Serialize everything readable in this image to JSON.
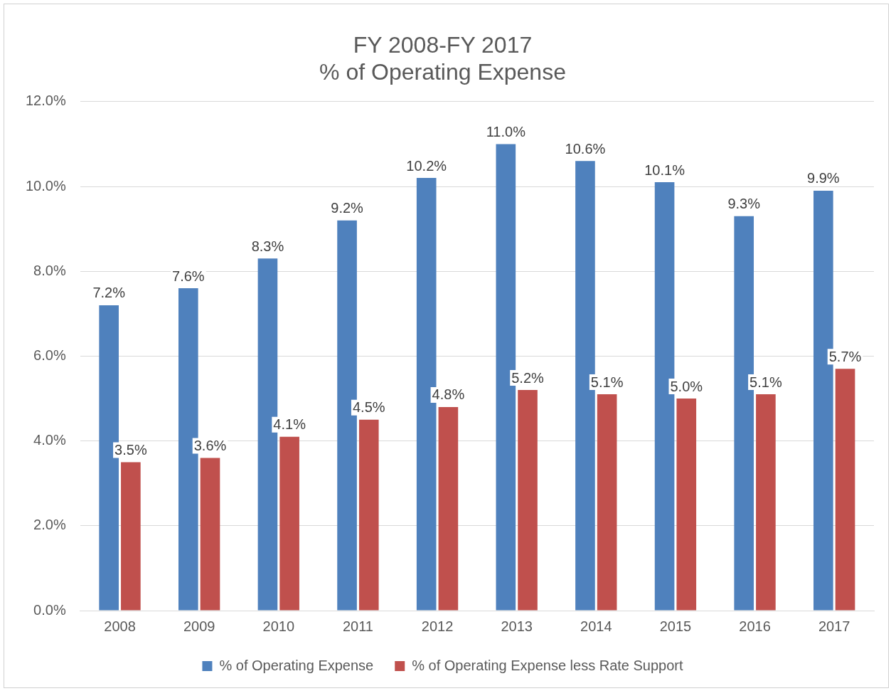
{
  "chart_data": {
    "type": "bar",
    "title": [
      "FY 2008-FY 2017",
      "% of Operating Expense"
    ],
    "categories": [
      "2008",
      "2009",
      "2010",
      "2011",
      "2012",
      "2013",
      "2014",
      "2015",
      "2016",
      "2017"
    ],
    "series": [
      {
        "name": "% of Operating Expense",
        "color": "#4f81bd",
        "values": [
          7.2,
          7.6,
          8.3,
          9.2,
          10.2,
          11.0,
          10.6,
          10.1,
          9.3,
          9.9
        ],
        "value_labels": [
          "7.2%",
          "7.6%",
          "8.3%",
          "9.2%",
          "10.2%",
          "11.0%",
          "10.6%",
          "10.1%",
          "9.3%",
          "9.9%"
        ]
      },
      {
        "name": "% of Operating Expense less Rate Support",
        "color": "#c0504d",
        "values": [
          3.5,
          3.6,
          4.1,
          4.5,
          4.8,
          5.2,
          5.1,
          5.0,
          5.1,
          5.7
        ],
        "value_labels": [
          "3.5%",
          "3.6%",
          "4.1%",
          "4.5%",
          "4.8%",
          "5.2%",
          "5.1%",
          "5.0%",
          "5.1%",
          "5.7%"
        ]
      }
    ],
    "ylim": [
      0,
      12
    ],
    "yticks": [
      {
        "value": 0,
        "label": "0.0%"
      },
      {
        "value": 2,
        "label": "2.0%"
      },
      {
        "value": 4,
        "label": "4.0%"
      },
      {
        "value": 6,
        "label": "6.0%"
      },
      {
        "value": 8,
        "label": "8.0%"
      },
      {
        "value": 10,
        "label": "10.0%"
      },
      {
        "value": 12,
        "label": "12.0%"
      }
    ],
    "grid": "y",
    "legend": "bottom"
  }
}
